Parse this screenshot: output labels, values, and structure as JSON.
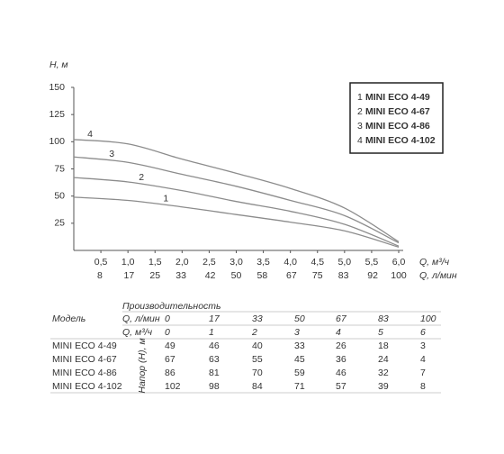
{
  "chart_data": {
    "type": "line",
    "y_label": "H, м",
    "x_label": "Q, м³/ч",
    "x2_label": "Q, л/мин",
    "x": [
      0,
      1,
      2,
      3,
      4,
      5,
      6
    ],
    "series": [
      {
        "name": "MINI ECO 4-49",
        "label": "1",
        "color": "#8c8c8c",
        "values": [
          49,
          46,
          40,
          33,
          26,
          18,
          3
        ]
      },
      {
        "name": "MINI ECO 4-67",
        "label": "2",
        "color": "#8c8c8c",
        "values": [
          67,
          63,
          55,
          45,
          36,
          24,
          4
        ]
      },
      {
        "name": "MINI ECO 4-86",
        "label": "3",
        "color": "#8c8c8c",
        "values": [
          86,
          81,
          70,
          59,
          46,
          32,
          7
        ]
      },
      {
        "name": "MINI ECO 4-102",
        "label": "4",
        "color": "#8c8c8c",
        "values": [
          102,
          98,
          84,
          71,
          57,
          39,
          8
        ]
      }
    ],
    "xlim": [
      0,
      6
    ],
    "ylim": [
      0,
      150
    ],
    "xticks": [
      {
        "value": 0.5,
        "label": "0,5"
      },
      {
        "value": 1,
        "label": "1,0"
      },
      {
        "value": 1.5,
        "label": "1,5"
      },
      {
        "value": 2,
        "label": "2,0"
      },
      {
        "value": 2.5,
        "label": "2,5"
      },
      {
        "value": 3,
        "label": "3,0"
      },
      {
        "value": 3.5,
        "label": "3,5"
      },
      {
        "value": 4,
        "label": "4,0"
      },
      {
        "value": 4.5,
        "label": "4,5"
      },
      {
        "value": 5,
        "label": "5,0"
      },
      {
        "value": 5.5,
        "label": "5,5"
      },
      {
        "value": 6,
        "label": "6,0"
      }
    ],
    "x2lim": [
      0,
      100
    ],
    "x2ticks": [
      8,
      17,
      25,
      33,
      42,
      50,
      58,
      67,
      75,
      83,
      92,
      100
    ],
    "yticks": [
      25,
      50,
      75,
      100,
      125,
      150
    ],
    "legend": "upper right"
  },
  "table": {
    "group_header": "Производительность",
    "model_header": "Модель",
    "flow_headers": [
      {
        "label": "Q, л/мин",
        "values": [
          0,
          17,
          33,
          50,
          67,
          83,
          100
        ]
      },
      {
        "label": "Q, м³/ч",
        "values": [
          0,
          1,
          2,
          3,
          4,
          5,
          6
        ]
      }
    ],
    "head_label": "Напор (Н), м",
    "rows": [
      {
        "model": "MINI ECO 4-49",
        "values": [
          49,
          46,
          40,
          33,
          26,
          18,
          3
        ]
      },
      {
        "model": "MINI ECO 4-67",
        "values": [
          67,
          63,
          55,
          45,
          36,
          24,
          4
        ]
      },
      {
        "model": "MINI ECO 4-86",
        "values": [
          86,
          81,
          70,
          59,
          46,
          32,
          7
        ]
      },
      {
        "model": "MINI ECO 4-102",
        "values": [
          102,
          98,
          84,
          71,
          57,
          39,
          8
        ]
      }
    ]
  }
}
